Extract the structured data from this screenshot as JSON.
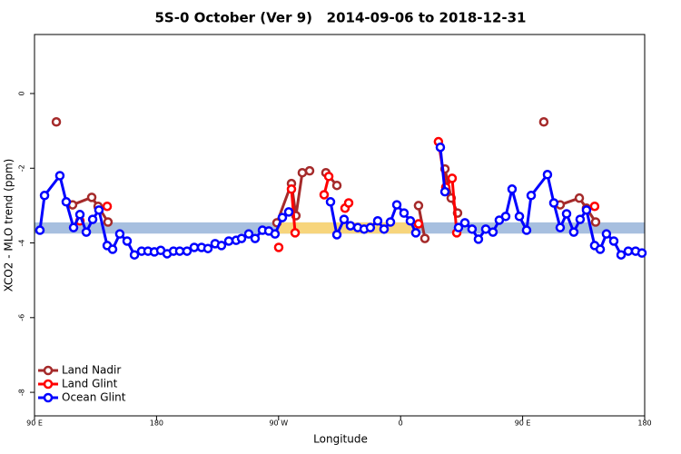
{
  "chart_data": {
    "type": "line",
    "title": "5S-0 October (Ver 9)   2014-09-06 to 2018-12-31",
    "x_label": "Longitude",
    "y_label": "XCO2 - MLO trend (ppm)",
    "xlim": [
      90,
      540
    ],
    "xticks": [
      {
        "value": 90,
        "label": "90 E"
      },
      180,
      {
        "value": 270,
        "label": "90 W"
      },
      {
        "value": 360,
        "label": "0"
      },
      {
        "value": 450,
        "label": "90 E"
      },
      {
        "value": 540,
        "label": "180"
      }
    ],
    "ylim": [
      -8.63,
      1.58
    ],
    "yticks": [
      0,
      -2,
      -4,
      -6,
      -8
    ],
    "legend": "bottom-left",
    "band": {
      "ylim": [
        -3.45,
        -3.75
      ],
      "color": "#a7bfdf",
      "highlight": {
        "xlim": [
          269,
          373
        ],
        "color": "#f7d57c"
      }
    },
    "series": [
      {
        "name": "Land Nadir",
        "color": "#a52a2a",
        "x": [
          106.1,
          null,
          118.1,
          132.2,
          136.9,
          144.2,
          null,
          268.8,
          279.5,
          282.8,
          287.5,
          292.9,
          null,
          304.9,
          313.0,
          null,
          373.2,
          377.9,
          null,
          392.7,
          397.3,
          402.0,
          null,
          465.6,
          null,
          477.7,
          491.8,
          497.1,
          503.8
        ],
        "values": [
          -0.76,
          null,
          -2.98,
          -2.78,
          -3.02,
          -3.44,
          null,
          -3.46,
          -2.41,
          -3.27,
          -2.12,
          -2.07,
          null,
          -2.12,
          -2.46,
          null,
          -3.0,
          -3.88,
          null,
          -2.02,
          -2.8,
          -3.2,
          null,
          -0.76,
          null,
          -2.98,
          -2.8,
          -3.07,
          -3.44
        ]
      },
      {
        "name": "Land Glint",
        "color": "#ff0000",
        "x": [
          123.5,
          null,
          143.6,
          null,
          270.1,
          null,
          279.5,
          282.2,
          null,
          303.6,
          307.0,
          null,
          319.0,
          321.7,
          null,
          373.2,
          null,
          387.9,
          393.3,
          398.0,
          401.4,
          null,
          503.1
        ],
        "values": [
          -3.41,
          null,
          -3.02,
          null,
          -4.12,
          null,
          -2.56,
          -3.73,
          null,
          -2.71,
          -2.22,
          null,
          -3.07,
          -2.93,
          null,
          -3.49,
          null,
          -1.29,
          -2.51,
          -2.27,
          -3.73,
          null,
          -3.02
        ]
      },
      {
        "name": "Ocean Glint",
        "color": "#0000ff",
        "x": [
          94.0,
          97.4,
          108.7,
          113.4,
          118.8,
          123.5,
          128.2,
          132.9,
          137.5,
          143.6,
          147.6,
          152.9,
          158.3,
          163.7,
          169.0,
          173.7,
          178.4,
          183.1,
          187.8,
          192.5,
          197.1,
          202.5,
          207.8,
          213.2,
          217.9,
          223.2,
          227.9,
          233.3,
          238.7,
          242.7,
          248.0,
          252.7,
          258.1,
          262.8,
          267.4,
          272.8,
          277.5,
          null,
          308.3,
          313.0,
          318.3,
          323.0,
          328.4,
          333.1,
          337.7,
          343.1,
          347.8,
          352.5,
          357.2,
          362.5,
          367.2,
          371.2,
          null,
          389.3,
          392.7,
          null,
          402.7,
          407.4,
          412.7,
          417.4,
          422.8,
          428.1,
          432.8,
          437.5,
          442.2,
          447.6,
          452.9,
          456.3,
          468.3,
          473.0,
          477.7,
          482.4,
          487.7,
          492.4,
          497.1,
          503.1,
          507.2,
          511.8,
          517.2,
          522.6,
          527.9,
          533.3,
          538.0
        ],
        "values": [
          -3.66,
          -2.73,
          -2.2,
          -2.9,
          -3.59,
          -3.24,
          -3.71,
          -3.37,
          -3.12,
          -4.07,
          -4.17,
          -3.76,
          -3.95,
          -4.32,
          -4.22,
          -4.22,
          -4.24,
          -4.2,
          -4.29,
          -4.22,
          -4.22,
          -4.22,
          -4.12,
          -4.12,
          -4.15,
          -4.02,
          -4.07,
          -3.95,
          -3.93,
          -3.88,
          -3.76,
          -3.88,
          -3.66,
          -3.68,
          -3.76,
          -3.32,
          -3.17,
          null,
          -2.9,
          -3.78,
          -3.37,
          -3.54,
          -3.59,
          -3.63,
          -3.59,
          -3.41,
          -3.63,
          -3.44,
          -2.98,
          -3.2,
          -3.41,
          -3.73,
          null,
          -1.44,
          -2.63,
          null,
          -3.59,
          -3.46,
          -3.63,
          -3.9,
          -3.63,
          -3.71,
          -3.39,
          -3.29,
          -2.56,
          -3.29,
          -3.66,
          -2.73,
          -2.17,
          -2.93,
          -3.59,
          -3.22,
          -3.71,
          -3.37,
          -3.12,
          -4.07,
          -4.17,
          -3.76,
          -3.95,
          -4.32,
          -4.22,
          -4.22,
          -4.27
        ]
      }
    ]
  }
}
